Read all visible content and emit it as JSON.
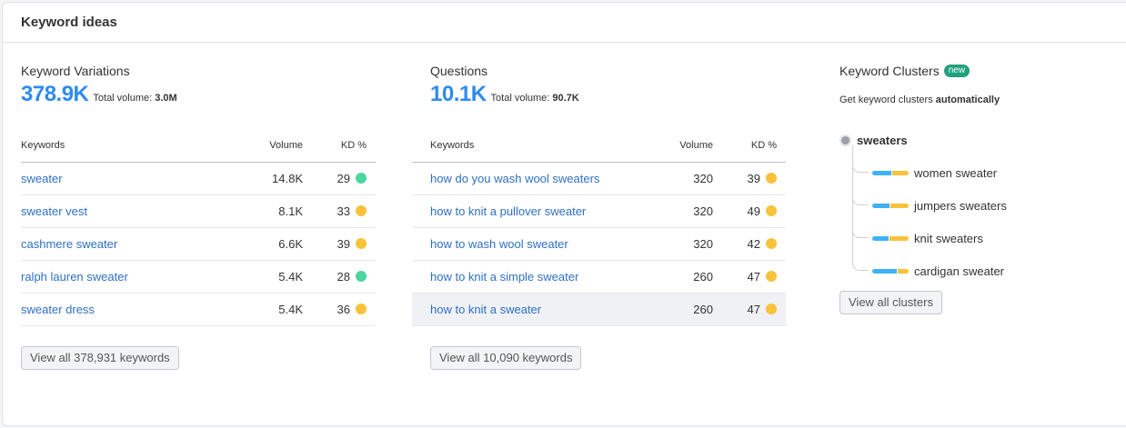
{
  "card": {
    "title": "Keyword ideas"
  },
  "colors": {
    "accent": "#2f8bf0",
    "link": "#2d6fc4",
    "kd_green": "#4dd5a0",
    "kd_yellow": "#f8c23a",
    "bar_blue": "#3fb1f5",
    "bar_yellow": "#f8c23a",
    "badge_green": "#21a07d"
  },
  "variations": {
    "title": "Keyword Variations",
    "count": "378.9K",
    "total_volume_label": "Total volume:",
    "total_volume": "3.0M",
    "columns": {
      "keyword": "Keywords",
      "volume": "Volume",
      "kd": "KD %"
    },
    "rows": [
      {
        "keyword": "sweater",
        "volume": "14.8K",
        "kd": "29",
        "kd_color": "green"
      },
      {
        "keyword": "sweater vest",
        "volume": "8.1K",
        "kd": "33",
        "kd_color": "yellow"
      },
      {
        "keyword": "cashmere sweater",
        "volume": "6.6K",
        "kd": "39",
        "kd_color": "yellow"
      },
      {
        "keyword": "ralph lauren sweater",
        "volume": "5.4K",
        "kd": "28",
        "kd_color": "green"
      },
      {
        "keyword": "sweater dress",
        "volume": "5.4K",
        "kd": "36",
        "kd_color": "yellow"
      }
    ],
    "button": "View all 378,931 keywords"
  },
  "questions": {
    "title": "Questions",
    "count": "10.1K",
    "total_volume_label": "Total volume:",
    "total_volume": "90.7K",
    "columns": {
      "keyword": "Keywords",
      "volume": "Volume",
      "kd": "KD %"
    },
    "rows": [
      {
        "keyword": "how do you wash wool sweaters",
        "volume": "320",
        "kd": "39",
        "kd_color": "yellow"
      },
      {
        "keyword": "how to knit a pullover sweater",
        "volume": "320",
        "kd": "49",
        "kd_color": "yellow"
      },
      {
        "keyword": "how to wash wool sweater",
        "volume": "320",
        "kd": "42",
        "kd_color": "yellow"
      },
      {
        "keyword": "how to knit a simple sweater",
        "volume": "260",
        "kd": "47",
        "kd_color": "yellow"
      },
      {
        "keyword": "how to knit a sweater",
        "volume": "260",
        "kd": "47",
        "kd_color": "yellow"
      }
    ],
    "button": "View all 10,090 keywords"
  },
  "clusters": {
    "title": "Keyword Clusters",
    "badge": "new",
    "description_prefix": "Get keyword clusters",
    "description_bold": "automatically",
    "root": "sweaters",
    "items": [
      {
        "label": "women sweater",
        "blue_pct": 52
      },
      {
        "label": "jumpers sweaters",
        "blue_pct": 48
      },
      {
        "label": "knit sweaters",
        "blue_pct": 45
      },
      {
        "label": "cardigan sweater",
        "blue_pct": 68
      }
    ],
    "button": "View all clusters"
  }
}
